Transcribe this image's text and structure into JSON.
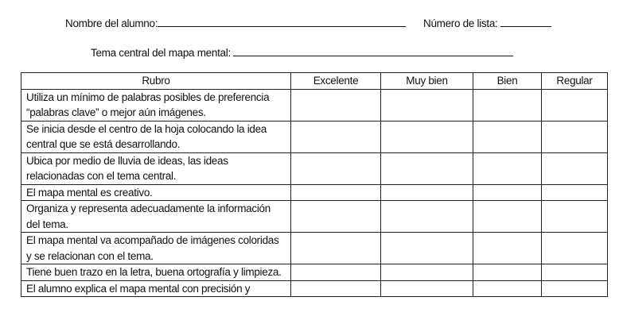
{
  "form": {
    "student_name_label": "Nombre del alumno:",
    "list_number_label": "Número de lista:",
    "topic_label": "Tema central del mapa mental:"
  },
  "table": {
    "headers": [
      "Rubro",
      "Excelente",
      "Muy bien",
      "Bien",
      "Regular"
    ],
    "rows": [
      "Utiliza un mínimo de palabras posibles de preferencia “palabras clave” o mejor aún imágenes.",
      "Se inicia desde el centro de la hoja colocando la idea central que se está desarrollando.",
      "Ubica por medio de lluvia de ideas, las ideas relacionadas con el tema central.",
      "El mapa mental es creativo.",
      "Organiza y representa adecuadamente la información del tema.",
      "El mapa mental va acompañado de imágenes coloridas y se relacionan con el tema.",
      "Tiene buen trazo en la letra, buena ortografía y limpieza.",
      "El alumno explica el mapa mental con precisión y"
    ]
  }
}
